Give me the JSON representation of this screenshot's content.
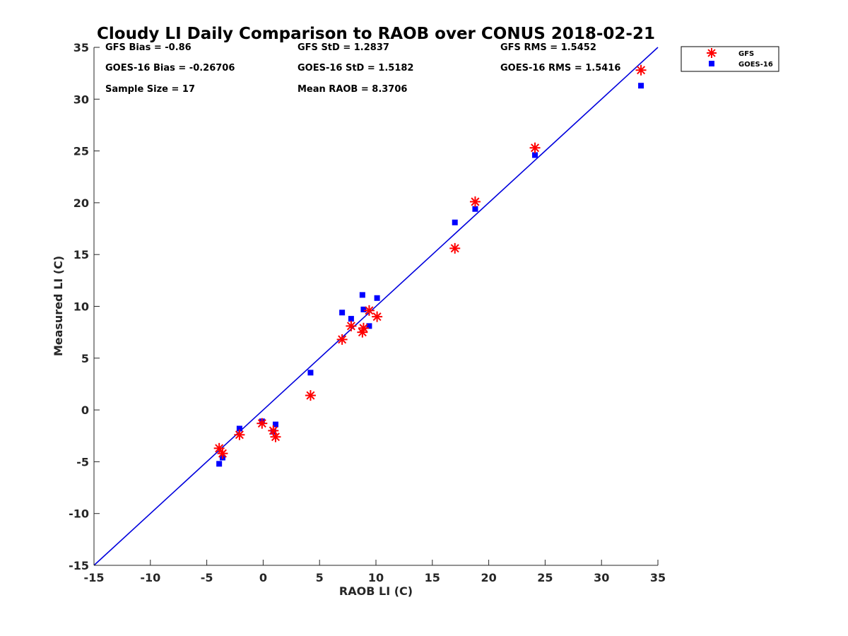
{
  "chart_data": {
    "type": "scatter",
    "title": "Cloudy LI Daily Comparison to RAOB over CONUS 2018-02-21",
    "xlabel": "RAOB LI (C)",
    "ylabel": "Measured LI (C)",
    "xlim": [
      -15,
      35
    ],
    "ylim": [
      -15,
      35
    ],
    "xticks": [
      -15,
      -10,
      -5,
      0,
      5,
      10,
      15,
      20,
      25,
      30,
      35
    ],
    "yticks": [
      -15,
      -10,
      -5,
      0,
      5,
      10,
      15,
      20,
      25,
      30,
      35
    ],
    "grid": false,
    "legend_position": "top-right outside",
    "reference_line": {
      "type": "one-to-one",
      "color": "#0000dd"
    },
    "stats": [
      [
        "GFS Bias = -0.86",
        "GFS StD = 1.2837",
        "GFS RMS = 1.5452"
      ],
      [
        "GOES-16 Bias = -0.26706",
        "GOES-16 StD = 1.5182",
        "GOES-16 RMS = 1.5416"
      ],
      [
        "Sample Size = 17",
        "Mean RAOB = 8.3706",
        ""
      ]
    ],
    "series": [
      {
        "name": "GFS",
        "marker": "asterisk",
        "color": "#ff0000",
        "points": [
          [
            -3.9,
            -3.7
          ],
          [
            -3.6,
            -4.2
          ],
          [
            -2.1,
            -2.4
          ],
          [
            -0.1,
            -1.3
          ],
          [
            0.9,
            -2.0
          ],
          [
            1.1,
            -2.6
          ],
          [
            4.2,
            1.4
          ],
          [
            7.0,
            6.8
          ],
          [
            7.8,
            8.1
          ],
          [
            8.8,
            7.5
          ],
          [
            8.9,
            7.9
          ],
          [
            9.4,
            9.6
          ],
          [
            10.1,
            9.0
          ],
          [
            17.0,
            15.6
          ],
          [
            18.8,
            20.1
          ],
          [
            24.1,
            25.3
          ],
          [
            33.5,
            32.8
          ]
        ]
      },
      {
        "name": "GOES-16",
        "marker": "square",
        "color": "#0000ff",
        "points": [
          [
            -3.9,
            -5.2
          ],
          [
            -3.6,
            -4.6
          ],
          [
            -2.1,
            -1.8
          ],
          [
            -0.1,
            -1.1
          ],
          [
            0.9,
            -2.1
          ],
          [
            1.1,
            -1.4
          ],
          [
            4.2,
            3.6
          ],
          [
            7.0,
            9.4
          ],
          [
            7.8,
            8.8
          ],
          [
            8.8,
            11.1
          ],
          [
            8.9,
            9.7
          ],
          [
            9.4,
            8.1
          ],
          [
            10.1,
            10.8
          ],
          [
            17.0,
            18.1
          ],
          [
            18.8,
            19.4
          ],
          [
            24.1,
            24.6
          ],
          [
            33.5,
            31.3
          ]
        ]
      }
    ]
  }
}
